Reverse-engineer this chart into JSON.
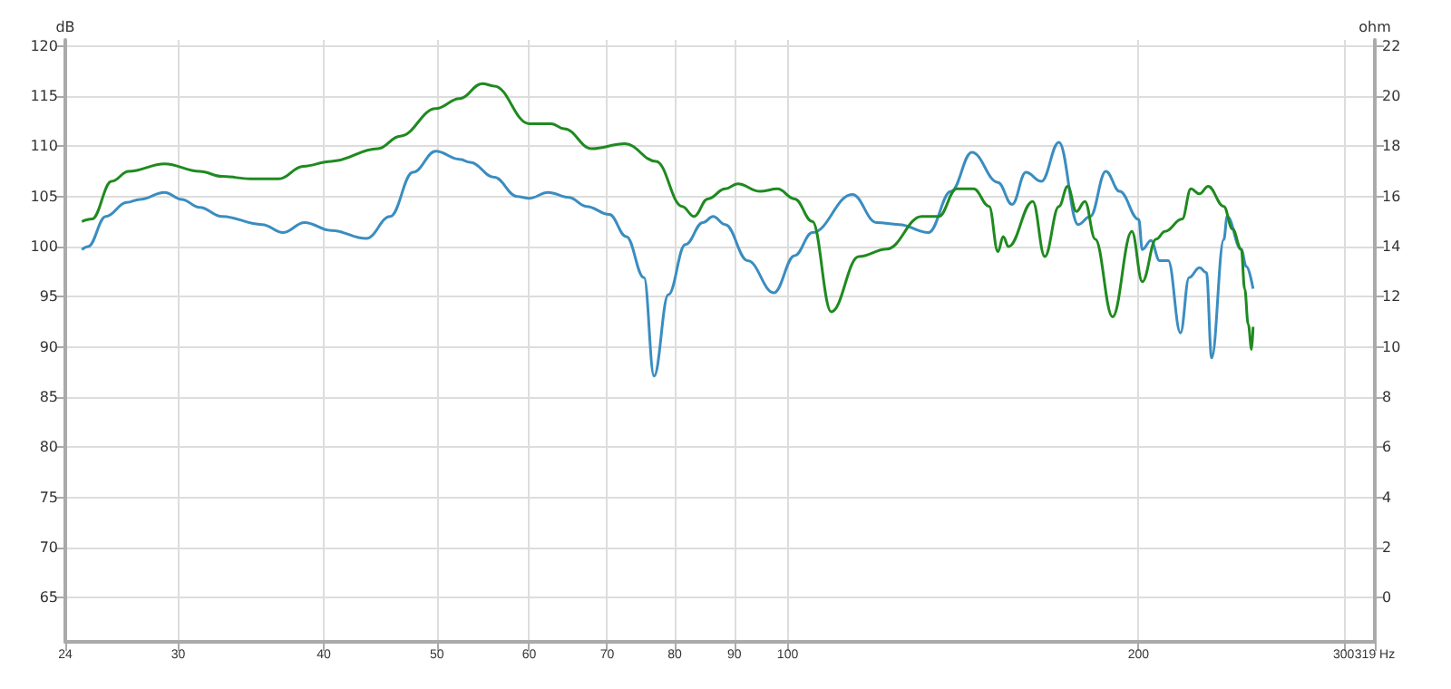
{
  "chart_data": {
    "type": "line",
    "xlabel": null,
    "ylabel": "dB",
    "y2label": "ohm",
    "log": "x",
    "grid": true,
    "xlim": [
      24,
      319
    ],
    "xticks": [
      24,
      30,
      40,
      50,
      60,
      70,
      80,
      90,
      100,
      200,
      300,
      {
        "value": 319,
        "label": "319 Hz"
      }
    ],
    "ylim": [
      60.6,
      120.6
    ],
    "yticks": [
      65,
      70,
      75,
      80,
      85,
      90,
      95,
      100,
      105,
      110,
      115,
      120
    ],
    "y2lim": [
      -1.76,
      22.24
    ],
    "y2ticks": [
      0,
      2,
      4,
      6,
      8,
      10,
      12,
      14,
      16,
      18,
      20,
      22
    ],
    "series": [
      {
        "color": "#3a8dc0",
        "x": [
          24.8,
          25.1,
          26.0,
          27.1,
          27.8,
          29.2,
          30.2,
          31.3,
          32.7,
          35.4,
          36.9,
          38.5,
          40.6,
          43.5,
          45.6,
          47.7,
          49.9,
          52.3,
          53.4,
          56.0,
          58.6,
          60.0,
          62.3,
          64.9,
          67.2,
          70.3,
          72.7,
          75.3,
          76.8,
          79.0,
          81.7,
          84.6,
          86.3,
          88.4,
          92.4,
          97.3,
          101.4,
          105.0,
          113.6,
          119.2,
          124.6,
          132.1,
          138.1,
          143.9,
          151.5,
          155.8,
          160.1,
          165.1,
          170.9,
          177.5,
          181.8,
          187.5,
          192.7,
          200.1,
          201.5,
          205.0,
          208.5,
          212.1,
          217.3,
          221.0,
          225.6,
          228.7,
          231.1,
          236.7,
          238.3,
          245.0,
          247.5,
          250.8
        ],
        "values": [
          99.7,
          100,
          103,
          104.4,
          104.7,
          105.4,
          104.7,
          103.9,
          103,
          102.2,
          101.4,
          102.4,
          101.6,
          100.8,
          103,
          107.4,
          109.5,
          108.7,
          108.4,
          106.9,
          105,
          104.8,
          105.4,
          104.9,
          104,
          103.2,
          101,
          96.9,
          87.1,
          95.2,
          100.2,
          102.4,
          103,
          102.2,
          98.6,
          95.4,
          99.1,
          101.4,
          105.2,
          102.4,
          102.2,
          101.4,
          105.5,
          109.4,
          106.4,
          104.2,
          107.4,
          106.5,
          110.4,
          102.2,
          103,
          107.5,
          105.5,
          102.7,
          99.7,
          100.6,
          98.6,
          98.6,
          91.4,
          96.9,
          97.9,
          97.4,
          88.9,
          100.7,
          103,
          99.7,
          98,
          95.8
        ]
      },
      {
        "color": "#1f8a1f",
        "axis": "y2",
        "x": [
          24.8,
          25.3,
          26.3,
          27.2,
          29.2,
          31.3,
          32.7,
          34.6,
          36.6,
          38.4,
          40.6,
          44.5,
          46.5,
          49.9,
          52.3,
          54.7,
          56.0,
          60.0,
          62.7,
          64.3,
          67.9,
          72.5,
          77.1,
          81.2,
          83.1,
          85.4,
          88.4,
          90.6,
          94.7,
          98.0,
          101.4,
          105.0,
          109.0,
          115.1,
          121.6,
          130.3,
          134.8,
          139.6,
          144.4,
          148.9,
          151.5,
          153.1,
          154.7,
          162.3,
          166.2,
          170.9,
          173.9,
          176.9,
          179.9,
          183.6,
          190.0,
          197.4,
          201.5,
          207.1,
          210.7,
          218.0,
          221.8,
          225.6,
          229.5,
          236.7,
          240.8,
          245.0,
          246.7,
          248.4,
          250.1,
          250.8
        ],
        "values": [
          15.0,
          15.1,
          16.6,
          17.0,
          17.3,
          17.0,
          16.8,
          16.7,
          16.7,
          17.2,
          17.4,
          17.9,
          18.4,
          19.5,
          19.9,
          20.5,
          20.4,
          18.9,
          18.9,
          18.7,
          17.9,
          18.1,
          17.4,
          15.6,
          15.2,
          15.9,
          16.3,
          16.5,
          16.2,
          16.3,
          15.9,
          15.0,
          11.4,
          13.6,
          13.9,
          15.2,
          15.2,
          16.3,
          16.3,
          15.6,
          13.8,
          14.4,
          14.0,
          15.8,
          13.6,
          15.6,
          16.4,
          15.4,
          15.8,
          14.3,
          11.2,
          14.6,
          12.6,
          14.3,
          14.6,
          15.1,
          16.3,
          16.1,
          16.4,
          15.6,
          14.7,
          13.9,
          12.3,
          10.9,
          9.9,
          10.8
        ]
      }
    ]
  }
}
